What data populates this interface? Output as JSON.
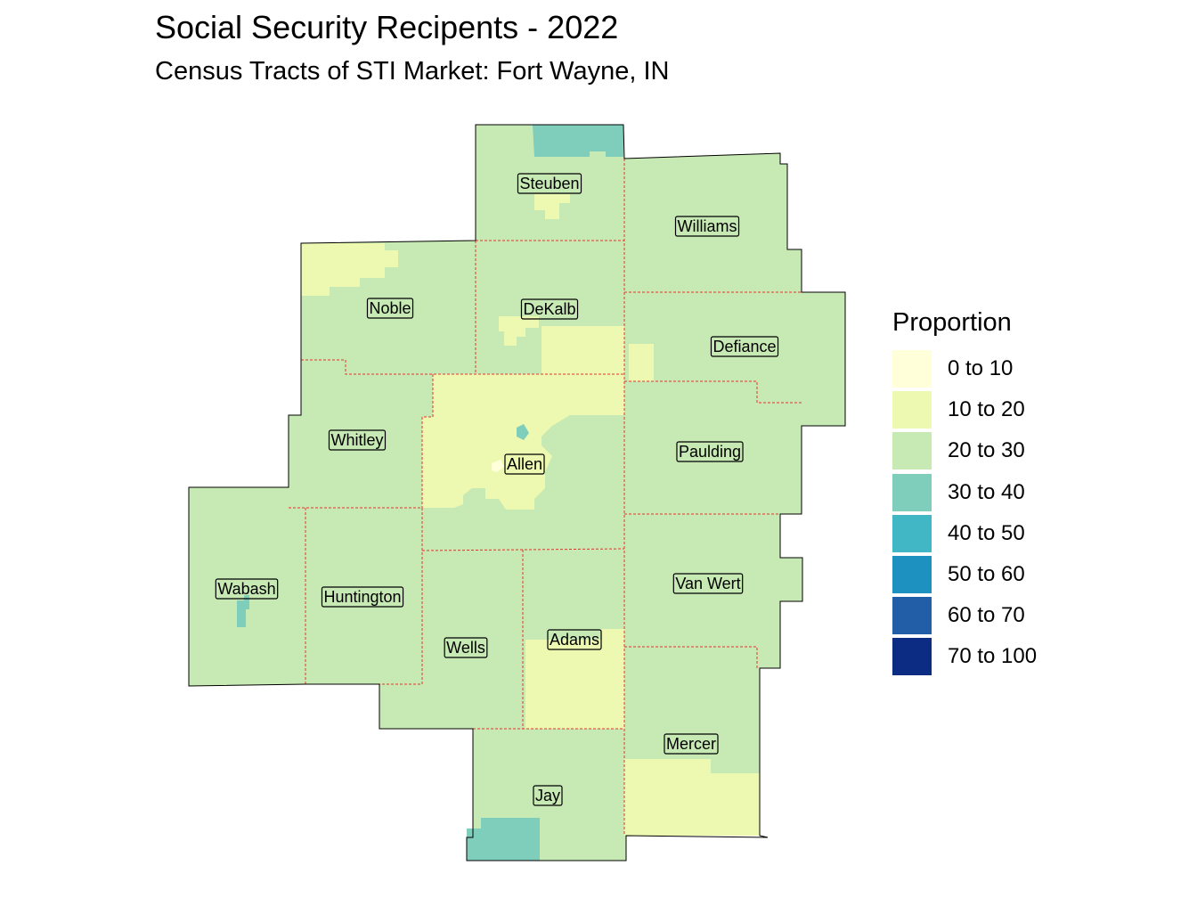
{
  "title": "Social Security Recipents - 2022",
  "subtitle": "Census Tracts of STI Market: Fort Wayne, IN",
  "legend": {
    "title": "Proportion",
    "items": [
      {
        "label": "0 to 10",
        "color": "#ffffd9"
      },
      {
        "label": "10 to 20",
        "color": "#edf8b1"
      },
      {
        "label": "20 to 30",
        "color": "#c7e9b4"
      },
      {
        "label": "30 to 40",
        "color": "#7fcdbb"
      },
      {
        "label": "40 to 50",
        "color": "#41b6c4"
      },
      {
        "label": "50 to 60",
        "color": "#1d91c0"
      },
      {
        "label": "60 to 70",
        "color": "#225ea8"
      },
      {
        "label": "70 to 100",
        "color": "#0c2c84"
      }
    ]
  },
  "counties": [
    {
      "name": "Steuben",
      "category": "20 to 30"
    },
    {
      "name": "Williams",
      "category": "20 to 30"
    },
    {
      "name": "Noble",
      "category": "20 to 30"
    },
    {
      "name": "DeKalb",
      "category": "20 to 30"
    },
    {
      "name": "Defiance",
      "category": "20 to 30"
    },
    {
      "name": "Whitley",
      "category": "20 to 30"
    },
    {
      "name": "Allen",
      "category": "10 to 20"
    },
    {
      "name": "Paulding",
      "category": "20 to 30"
    },
    {
      "name": "Wabash",
      "category": "20 to 30"
    },
    {
      "name": "Huntington",
      "category": "20 to 30"
    },
    {
      "name": "Wells",
      "category": "20 to 30"
    },
    {
      "name": "Adams",
      "category": "10 to 20"
    },
    {
      "name": "Van Wert",
      "category": "20 to 30"
    },
    {
      "name": "Mercer",
      "category": "20 to 30"
    },
    {
      "name": "Jay",
      "category": "20 to 30"
    }
  ],
  "colors": {
    "state_border": "#e8332b",
    "outline": "#000000"
  }
}
